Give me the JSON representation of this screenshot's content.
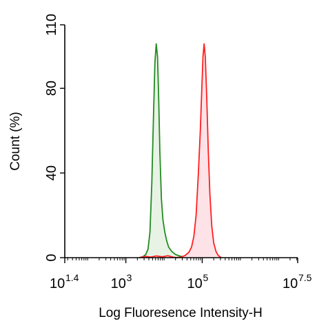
{
  "chart_data": {
    "type": "area",
    "xlabel": "Log Fluoresence Intensity-H",
    "ylabel": "Count  (%)",
    "x_scale": "log10",
    "xlim": [
      1.4,
      7.5
    ],
    "ylim": [
      0,
      110
    ],
    "x_ticks": [
      {
        "base": "10",
        "exp": "1.4",
        "value": 1.4
      },
      {
        "base": "10",
        "exp": "3",
        "value": 3
      },
      {
        "base": "10",
        "exp": "5",
        "value": 5
      },
      {
        "base": "10",
        "exp": "7.5",
        "value": 7.5
      }
    ],
    "y_ticks": [
      {
        "label": "0",
        "value": 0
      },
      {
        "label": "40",
        "value": 40
      },
      {
        "label": "80",
        "value": 80
      },
      {
        "label": "110",
        "value": 110
      }
    ],
    "grid": false,
    "series": [
      {
        "color": "#228B22",
        "fill": "#e8f3e6",
        "points": [
          [
            3.35,
            0
          ],
          [
            3.45,
            0.5
          ],
          [
            3.52,
            1.5
          ],
          [
            3.58,
            4
          ],
          [
            3.63,
            12
          ],
          [
            3.68,
            35
          ],
          [
            3.72,
            65
          ],
          [
            3.76,
            92
          ],
          [
            3.795,
            101
          ],
          [
            3.83,
            95
          ],
          [
            3.86,
            75
          ],
          [
            3.89,
            50
          ],
          [
            3.93,
            28
          ],
          [
            3.97,
            18
          ],
          [
            4.02,
            12
          ],
          [
            4.07,
            8
          ],
          [
            4.12,
            5
          ],
          [
            4.2,
            3
          ],
          [
            4.3,
            1.5
          ],
          [
            4.4,
            0.8
          ],
          [
            4.55,
            0.3
          ],
          [
            4.7,
            0
          ]
        ]
      },
      {
        "color": "#ff1e1e",
        "fill": "#fde3e7",
        "points": [
          [
            4.3,
            0
          ],
          [
            4.45,
            0.3
          ],
          [
            4.55,
            1
          ],
          [
            4.65,
            2.5
          ],
          [
            4.72,
            5
          ],
          [
            4.78,
            10
          ],
          [
            4.84,
            20
          ],
          [
            4.9,
            40
          ],
          [
            4.95,
            60
          ],
          [
            4.99,
            80
          ],
          [
            5.02,
            95
          ],
          [
            5.05,
            101
          ],
          [
            5.08,
            95
          ],
          [
            5.12,
            75
          ],
          [
            5.16,
            50
          ],
          [
            5.2,
            30
          ],
          [
            5.25,
            15
          ],
          [
            5.3,
            7
          ],
          [
            5.36,
            3
          ],
          [
            5.42,
            1
          ],
          [
            5.5,
            0
          ]
        ]
      },
      {
        "color": "#ff1e1e",
        "fill": "none",
        "points": [
          [
            3.35,
            0
          ],
          [
            3.5,
            0.6
          ],
          [
            3.65,
            0.3
          ],
          [
            3.8,
            0.8
          ],
          [
            3.95,
            0.4
          ],
          [
            4.1,
            0.9
          ],
          [
            4.25,
            0.2
          ],
          [
            4.35,
            0
          ]
        ]
      }
    ]
  }
}
